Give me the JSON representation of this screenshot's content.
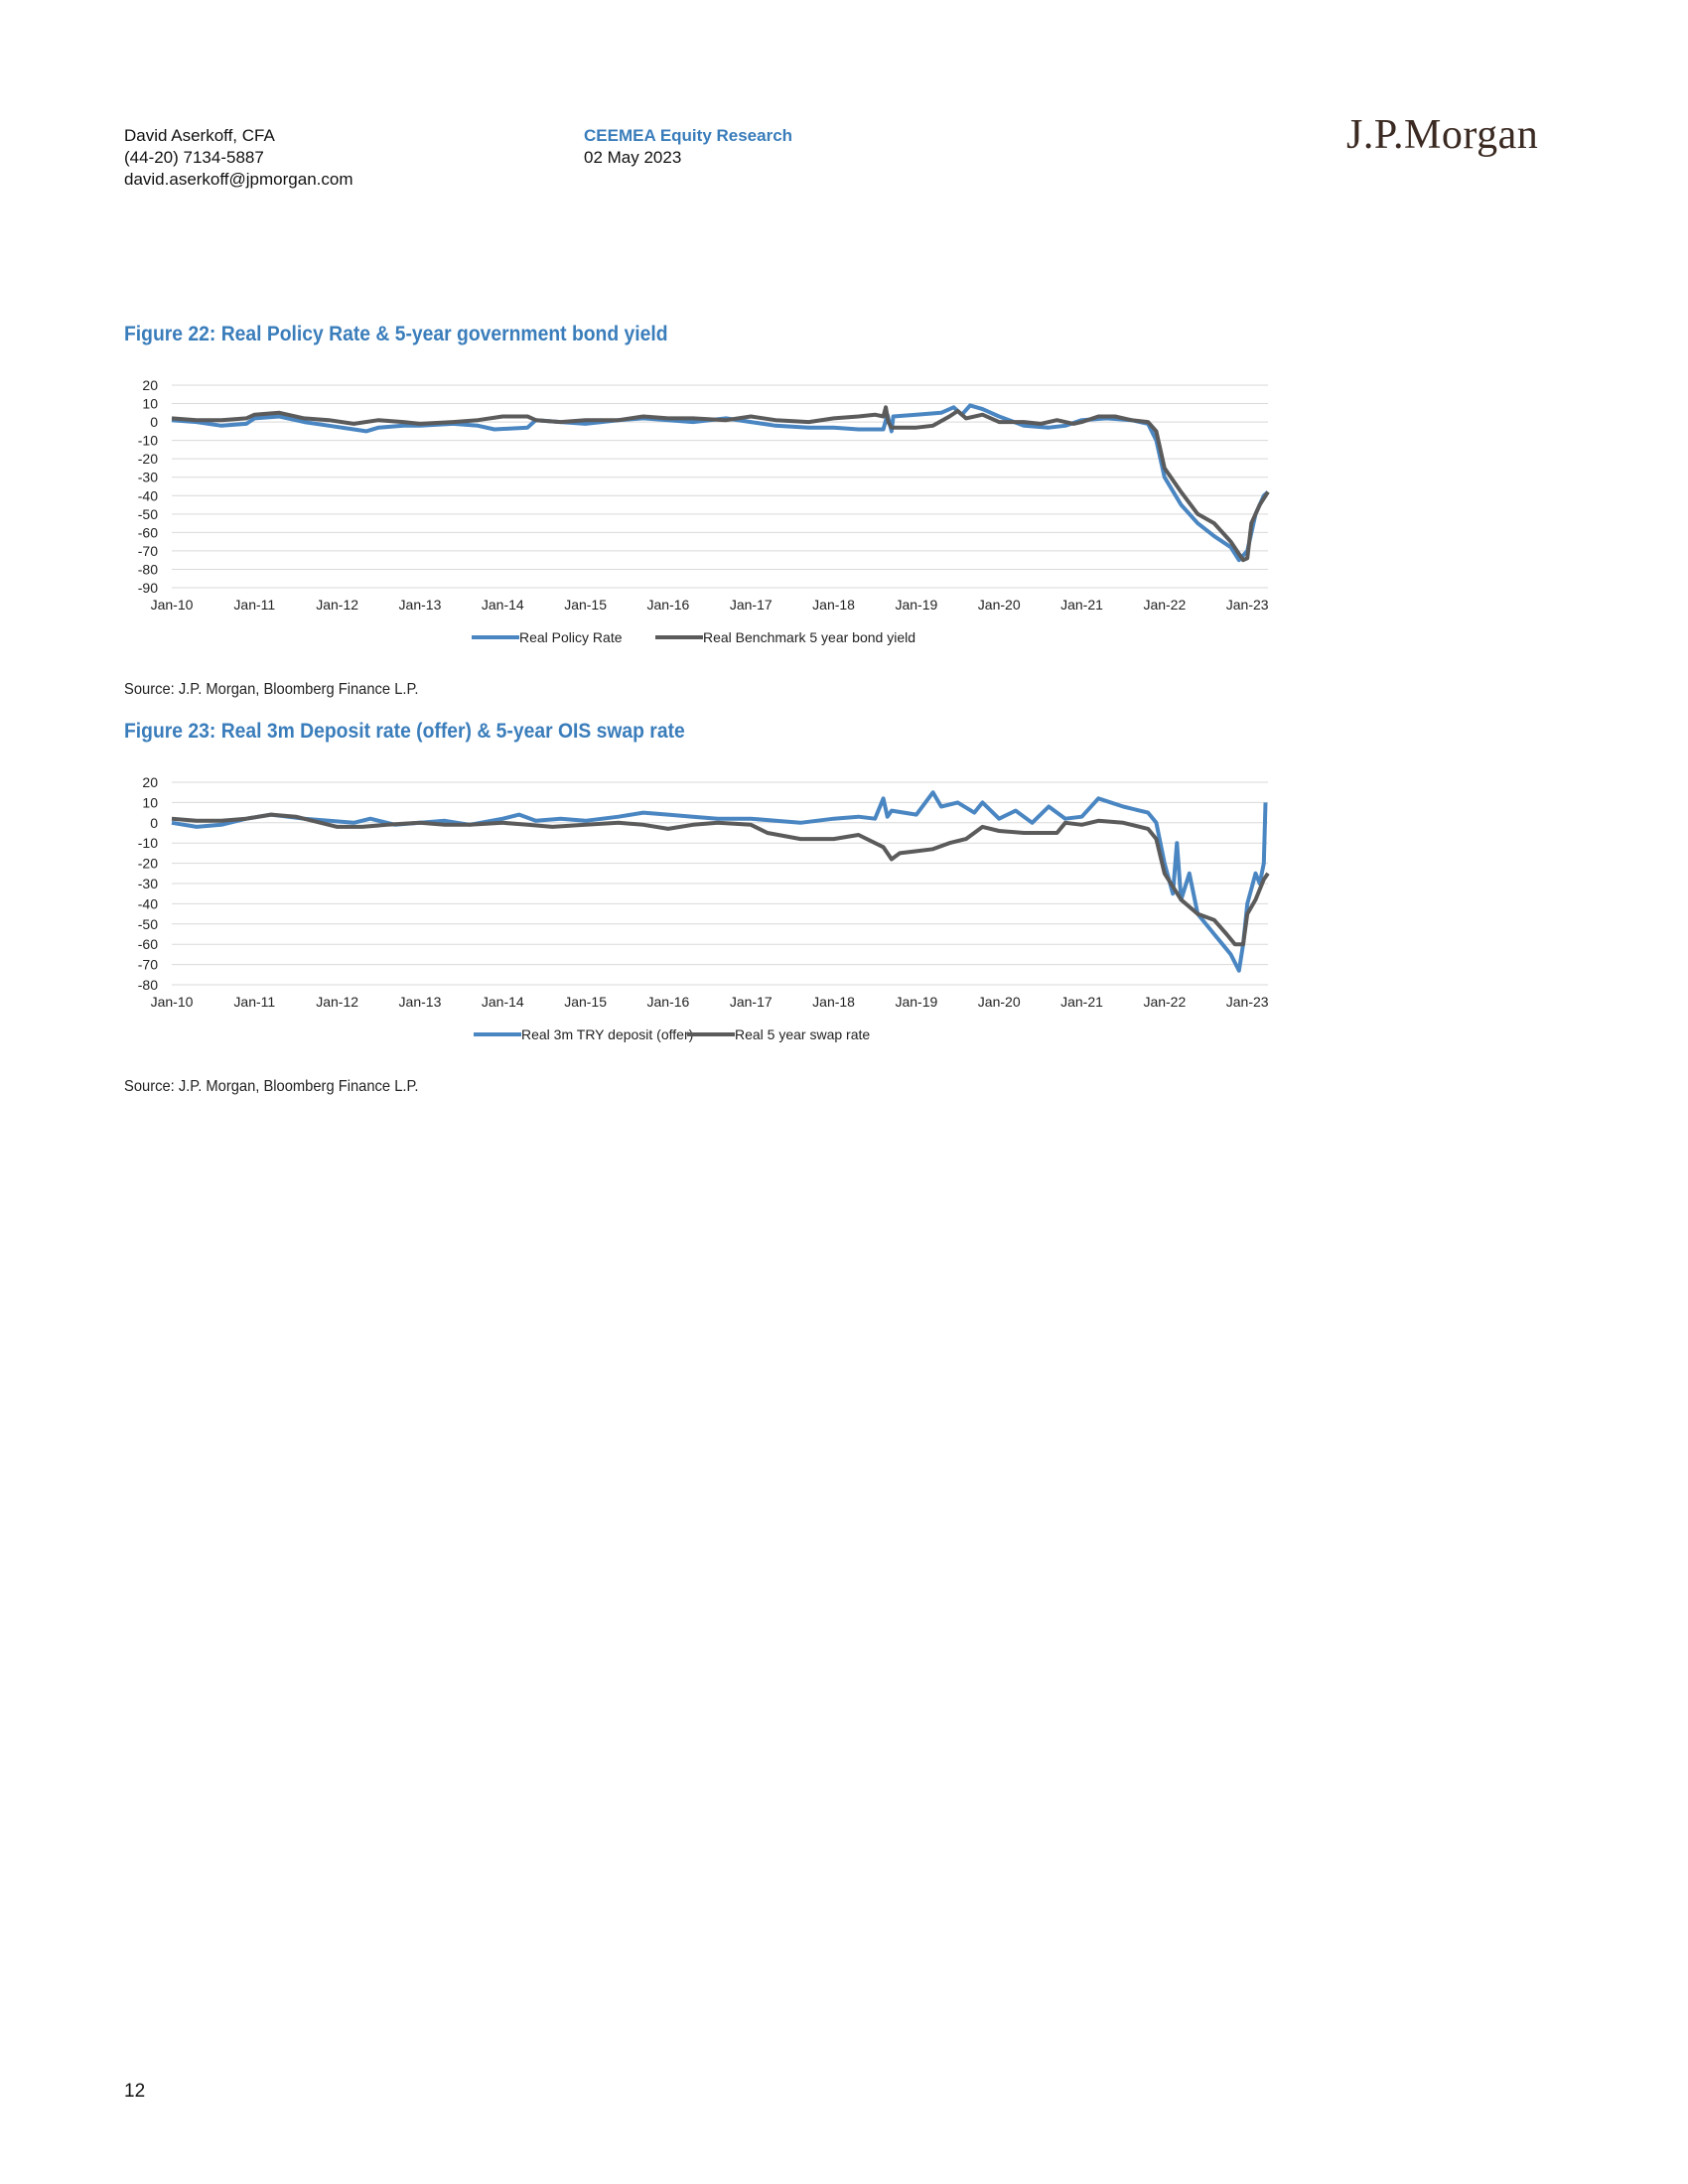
{
  "header": {
    "author": "David Aserkoff, CFA",
    "phone": "(44-20) 7134-5887",
    "email": "david.aserkoff@jpmorgan.com",
    "department": "CEEMEA Equity Research",
    "date": "02 May 2023",
    "logo_text": "J.P.Morgan"
  },
  "figures": [
    {
      "title": "Figure 22: Real Policy Rate & 5-year government bond yield",
      "source": "Source: J.P. Morgan, Bloomberg Finance L.P."
    },
    {
      "title": "Figure 23: Real 3m Deposit rate (offer) & 5-year OIS swap rate",
      "source": "Source: J.P. Morgan, Bloomberg Finance L.P."
    }
  ],
  "page_number": "12",
  "colors": {
    "blue": "#4a86c2",
    "grey": "#5b5b5b",
    "accent": "#3a7dbb"
  },
  "chart_data": [
    {
      "type": "line",
      "title": "Figure 22: Real Policy Rate & 5-year government bond yield",
      "x_ticks": [
        "Jan-10",
        "Jan-11",
        "Jan-12",
        "Jan-13",
        "Jan-14",
        "Jan-15",
        "Jan-16",
        "Jan-17",
        "Jan-18",
        "Jan-19",
        "Jan-20",
        "Jan-21",
        "Jan-22",
        "Jan-23"
      ],
      "y_ticks": [
        20,
        10,
        0,
        -10,
        -20,
        -30,
        -40,
        -50,
        -60,
        -70,
        -80,
        -90
      ],
      "ylim": [
        -90,
        20
      ],
      "xlim": [
        2010.0,
        2023.25
      ],
      "grid": true,
      "legend_position": "bottom",
      "series": [
        {
          "name": "Real Policy Rate",
          "color": "#4a86c2",
          "points": [
            [
              2010.0,
              1
            ],
            [
              2010.3,
              0
            ],
            [
              2010.6,
              -2
            ],
            [
              2010.9,
              -1
            ],
            [
              2011.0,
              2
            ],
            [
              2011.3,
              3
            ],
            [
              2011.6,
              0
            ],
            [
              2011.9,
              -2
            ],
            [
              2012.2,
              -4
            ],
            [
              2012.35,
              -5
            ],
            [
              2012.5,
              -3
            ],
            [
              2012.8,
              -2
            ],
            [
              2013.0,
              -2
            ],
            [
              2013.4,
              -1
            ],
            [
              2013.7,
              -2
            ],
            [
              2013.9,
              -4
            ],
            [
              2014.3,
              -3
            ],
            [
              2014.4,
              1
            ],
            [
              2014.7,
              0
            ],
            [
              2015.0,
              -1
            ],
            [
              2015.4,
              1
            ],
            [
              2015.7,
              2
            ],
            [
              2016.0,
              1
            ],
            [
              2016.3,
              0
            ],
            [
              2016.7,
              2
            ],
            [
              2017.0,
              0
            ],
            [
              2017.3,
              -2
            ],
            [
              2017.7,
              -3
            ],
            [
              2018.0,
              -3
            ],
            [
              2018.3,
              -4
            ],
            [
              2018.6,
              -4
            ],
            [
              2018.65,
              4
            ],
            [
              2018.7,
              -5
            ],
            [
              2018.72,
              3
            ],
            [
              2019.0,
              4
            ],
            [
              2019.3,
              5
            ],
            [
              2019.45,
              8
            ],
            [
              2019.55,
              4
            ],
            [
              2019.65,
              9
            ],
            [
              2019.8,
              7
            ],
            [
              2020.0,
              3
            ],
            [
              2020.3,
              -2
            ],
            [
              2020.6,
              -3
            ],
            [
              2020.8,
              -2
            ],
            [
              2021.0,
              1
            ],
            [
              2021.3,
              2
            ],
            [
              2021.6,
              1
            ],
            [
              2021.8,
              -1
            ],
            [
              2021.9,
              -10
            ],
            [
              2022.0,
              -30
            ],
            [
              2022.2,
              -45
            ],
            [
              2022.4,
              -55
            ],
            [
              2022.6,
              -62
            ],
            [
              2022.8,
              -68
            ],
            [
              2022.9,
              -75
            ],
            [
              2023.0,
              -70
            ],
            [
              2023.1,
              -50
            ],
            [
              2023.2,
              -40
            ],
            [
              2023.25,
              -38
            ]
          ]
        },
        {
          "name": "Real Benchmark 5 year bond yield",
          "color": "#5b5b5b",
          "points": [
            [
              2010.0,
              2
            ],
            [
              2010.3,
              1
            ],
            [
              2010.6,
              1
            ],
            [
              2010.9,
              2
            ],
            [
              2011.0,
              4
            ],
            [
              2011.3,
              5
            ],
            [
              2011.6,
              2
            ],
            [
              2011.9,
              1
            ],
            [
              2012.2,
              -1
            ],
            [
              2012.5,
              1
            ],
            [
              2012.8,
              0
            ],
            [
              2013.0,
              -1
            ],
            [
              2013.4,
              0
            ],
            [
              2013.7,
              1
            ],
            [
              2014.0,
              3
            ],
            [
              2014.3,
              3
            ],
            [
              2014.4,
              1
            ],
            [
              2014.7,
              0
            ],
            [
              2015.0,
              1
            ],
            [
              2015.4,
              1
            ],
            [
              2015.7,
              3
            ],
            [
              2016.0,
              2
            ],
            [
              2016.3,
              2
            ],
            [
              2016.7,
              1
            ],
            [
              2017.0,
              3
            ],
            [
              2017.3,
              1
            ],
            [
              2017.7,
              0
            ],
            [
              2018.0,
              2
            ],
            [
              2018.3,
              3
            ],
            [
              2018.5,
              4
            ],
            [
              2018.6,
              3
            ],
            [
              2018.63,
              8
            ],
            [
              2018.66,
              0
            ],
            [
              2018.7,
              -3
            ],
            [
              2019.0,
              -3
            ],
            [
              2019.2,
              -2
            ],
            [
              2019.4,
              3
            ],
            [
              2019.5,
              6
            ],
            [
              2019.6,
              2
            ],
            [
              2019.8,
              4
            ],
            [
              2020.0,
              0
            ],
            [
              2020.3,
              0
            ],
            [
              2020.5,
              -1
            ],
            [
              2020.7,
              1
            ],
            [
              2020.9,
              -1
            ],
            [
              2021.0,
              0
            ],
            [
              2021.2,
              3
            ],
            [
              2021.4,
              3
            ],
            [
              2021.6,
              1
            ],
            [
              2021.8,
              0
            ],
            [
              2021.9,
              -5
            ],
            [
              2022.0,
              -25
            ],
            [
              2022.2,
              -38
            ],
            [
              2022.4,
              -50
            ],
            [
              2022.6,
              -55
            ],
            [
              2022.8,
              -65
            ],
            [
              2022.95,
              -75
            ],
            [
              2023.0,
              -74
            ],
            [
              2023.05,
              -55
            ],
            [
              2023.15,
              -45
            ],
            [
              2023.25,
              -38
            ]
          ]
        }
      ]
    },
    {
      "type": "line",
      "title": "Figure 23: Real 3m Deposit rate (offer) & 5-year OIS swap rate",
      "x_ticks": [
        "Jan-10",
        "Jan-11",
        "Jan-12",
        "Jan-13",
        "Jan-14",
        "Jan-15",
        "Jan-16",
        "Jan-17",
        "Jan-18",
        "Jan-19",
        "Jan-20",
        "Jan-21",
        "Jan-22",
        "Jan-23"
      ],
      "y_ticks": [
        20,
        10,
        0,
        -10,
        -20,
        -30,
        -40,
        -50,
        -60,
        -70,
        -80
      ],
      "ylim": [
        -80,
        20
      ],
      "xlim": [
        2010.0,
        2023.25
      ],
      "grid": true,
      "legend_position": "bottom",
      "series": [
        {
          "name": "Real 3m TRY deposit (offer)",
          "color": "#4a86c2",
          "points": [
            [
              2010.0,
              0
            ],
            [
              2010.3,
              -2
            ],
            [
              2010.6,
              -1
            ],
            [
              2010.9,
              2
            ],
            [
              2011.2,
              4
            ],
            [
              2011.6,
              2
            ],
            [
              2011.9,
              1
            ],
            [
              2012.2,
              0
            ],
            [
              2012.4,
              2
            ],
            [
              2012.7,
              -1
            ],
            [
              2013.0,
              0
            ],
            [
              2013.3,
              1
            ],
            [
              2013.6,
              -1
            ],
            [
              2014.0,
              2
            ],
            [
              2014.2,
              4
            ],
            [
              2014.4,
              1
            ],
            [
              2014.7,
              2
            ],
            [
              2015.0,
              1
            ],
            [
              2015.4,
              3
            ],
            [
              2015.7,
              5
            ],
            [
              2016.0,
              4
            ],
            [
              2016.3,
              3
            ],
            [
              2016.6,
              2
            ],
            [
              2017.0,
              2
            ],
            [
              2017.3,
              1
            ],
            [
              2017.6,
              0
            ],
            [
              2018.0,
              2
            ],
            [
              2018.3,
              3
            ],
            [
              2018.5,
              2
            ],
            [
              2018.6,
              12
            ],
            [
              2018.65,
              3
            ],
            [
              2018.7,
              6
            ],
            [
              2019.0,
              4
            ],
            [
              2019.2,
              15
            ],
            [
              2019.3,
              8
            ],
            [
              2019.5,
              10
            ],
            [
              2019.7,
              5
            ],
            [
              2019.8,
              10
            ],
            [
              2020.0,
              2
            ],
            [
              2020.2,
              6
            ],
            [
              2020.4,
              0
            ],
            [
              2020.6,
              8
            ],
            [
              2020.8,
              2
            ],
            [
              2021.0,
              3
            ],
            [
              2021.2,
              12
            ],
            [
              2021.5,
              8
            ],
            [
              2021.8,
              5
            ],
            [
              2021.9,
              0
            ],
            [
              2022.0,
              -20
            ],
            [
              2022.1,
              -35
            ],
            [
              2022.15,
              -10
            ],
            [
              2022.2,
              -38
            ],
            [
              2022.3,
              -25
            ],
            [
              2022.4,
              -45
            ],
            [
              2022.6,
              -55
            ],
            [
              2022.7,
              -60
            ],
            [
              2022.8,
              -65
            ],
            [
              2022.9,
              -73
            ],
            [
              2022.95,
              -60
            ],
            [
              2023.0,
              -40
            ],
            [
              2023.1,
              -25
            ],
            [
              2023.15,
              -30
            ],
            [
              2023.2,
              -20
            ],
            [
              2023.22,
              10
            ]
          ]
        },
        {
          "name": "Real 5 year swap rate",
          "color": "#5b5b5b",
          "points": [
            [
              2010.0,
              2
            ],
            [
              2010.3,
              1
            ],
            [
              2010.6,
              1
            ],
            [
              2010.9,
              2
            ],
            [
              2011.2,
              4
            ],
            [
              2011.5,
              3
            ],
            [
              2011.8,
              0
            ],
            [
              2012.0,
              -2
            ],
            [
              2012.3,
              -2
            ],
            [
              2012.6,
              -1
            ],
            [
              2013.0,
              0
            ],
            [
              2013.3,
              -1
            ],
            [
              2013.6,
              -1
            ],
            [
              2014.0,
              0
            ],
            [
              2014.3,
              -1
            ],
            [
              2014.6,
              -2
            ],
            [
              2015.0,
              -1
            ],
            [
              2015.4,
              0
            ],
            [
              2015.7,
              -1
            ],
            [
              2016.0,
              -3
            ],
            [
              2016.3,
              -1
            ],
            [
              2016.6,
              0
            ],
            [
              2017.0,
              -1
            ],
            [
              2017.2,
              -5
            ],
            [
              2017.6,
              -8
            ],
            [
              2018.0,
              -8
            ],
            [
              2018.3,
              -6
            ],
            [
              2018.6,
              -12
            ],
            [
              2018.7,
              -18
            ],
            [
              2018.8,
              -15
            ],
            [
              2019.0,
              -14
            ],
            [
              2019.2,
              -13
            ],
            [
              2019.4,
              -10
            ],
            [
              2019.6,
              -8
            ],
            [
              2019.8,
              -2
            ],
            [
              2020.0,
              -4
            ],
            [
              2020.3,
              -5
            ],
            [
              2020.7,
              -5
            ],
            [
              2020.8,
              0
            ],
            [
              2021.0,
              -1
            ],
            [
              2021.2,
              1
            ],
            [
              2021.5,
              0
            ],
            [
              2021.8,
              -3
            ],
            [
              2021.9,
              -8
            ],
            [
              2022.0,
              -25
            ],
            [
              2022.2,
              -38
            ],
            [
              2022.4,
              -45
            ],
            [
              2022.6,
              -48
            ],
            [
              2022.75,
              -55
            ],
            [
              2022.85,
              -60
            ],
            [
              2022.95,
              -60
            ],
            [
              2023.0,
              -45
            ],
            [
              2023.1,
              -38
            ],
            [
              2023.2,
              -28
            ],
            [
              2023.25,
              -25
            ]
          ]
        }
      ]
    }
  ]
}
